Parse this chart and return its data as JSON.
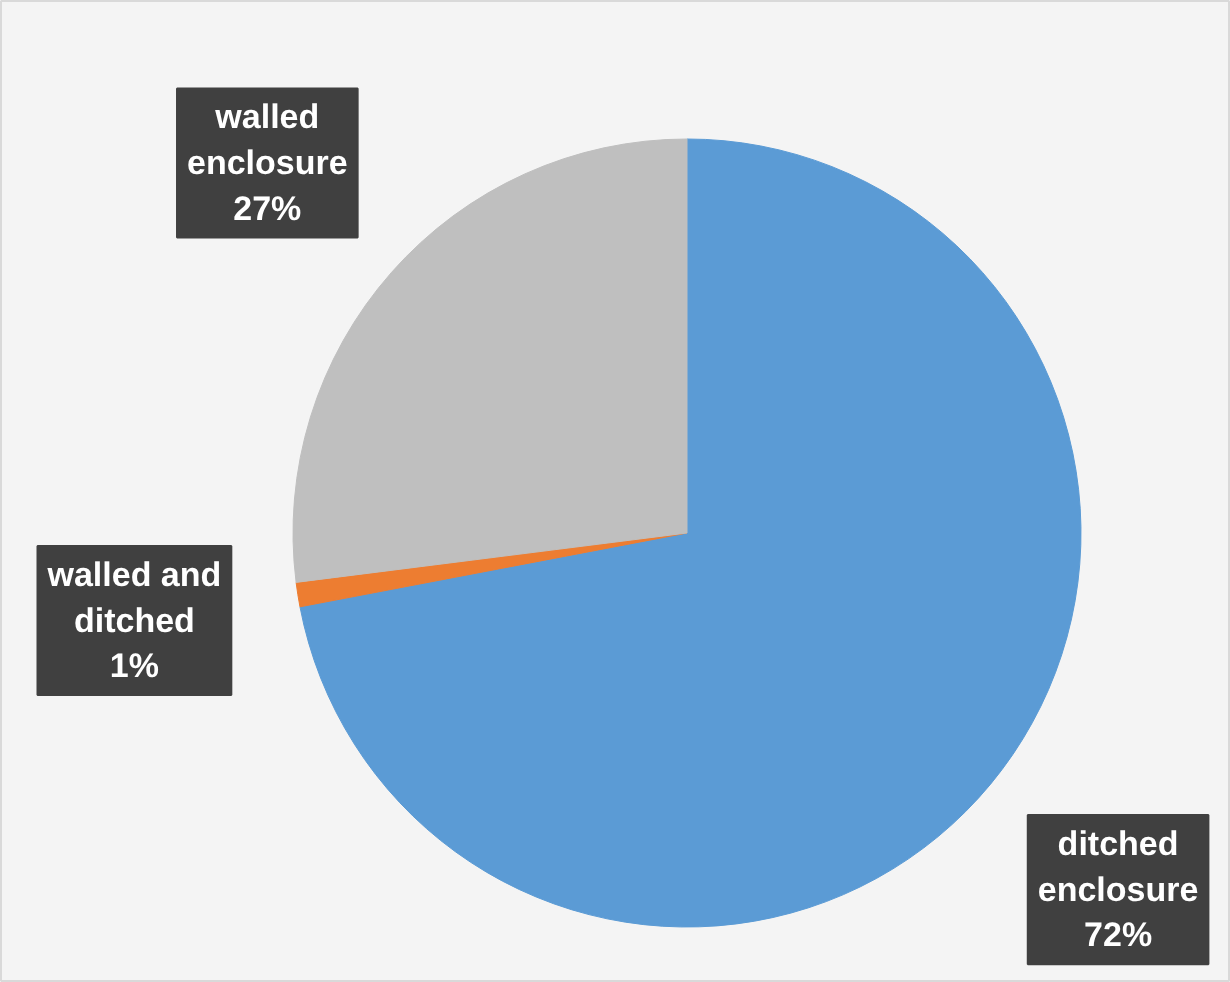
{
  "chart_data": {
    "type": "pie",
    "categories": [
      "ditched enclosure",
      "walled and ditched",
      "walled enclosure"
    ],
    "values": [
      72,
      1,
      27
    ],
    "colors": [
      "#5b9bd5",
      "#ed7d31",
      "#bfbfbf"
    ],
    "value_labels": [
      "72%",
      "1%",
      "27%"
    ]
  }
}
